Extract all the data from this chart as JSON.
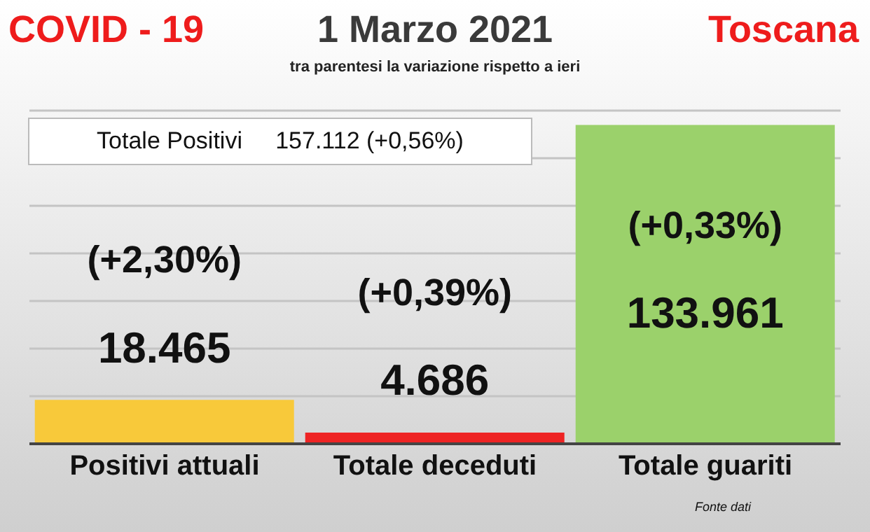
{
  "chart_data": {
    "type": "bar",
    "title": "COVID - 19",
    "subtitle": "1 Marzo 2021",
    "legend_title": null,
    "categories": [
      "Positivi attuali",
      "Totale deceduti",
      "Totale guariti"
    ],
    "values": [
      18465,
      4686,
      133961
    ],
    "colors": [
      "#f8c93a",
      "#ee2424",
      "#9bd16b"
    ],
    "value_labels": [
      "18.465",
      "4.686",
      "133.961"
    ],
    "ylim": [
      0,
      140000
    ],
    "yticks": [
      {
        "value": 0,
        "label": null
      },
      {
        "value": 20000,
        "label": null
      },
      {
        "value": 40000,
        "label": null
      },
      {
        "value": 60000,
        "label": null
      },
      {
        "value": 80000,
        "label": null
      },
      {
        "value": 100000,
        "label": null
      },
      {
        "value": 120000,
        "label": null
      },
      {
        "value": 140000,
        "label": null
      }
    ],
    "grid": "y",
    "legend": false,
    "tick_labels": "x",
    "annotations": [
      "Toscana",
      "tra parentesi la variazione rispetto a ieri",
      "Totale Positivi     157.112 (+0,56%)",
      "(+2,30%)",
      "(+0,39%)",
      "(+0,33%)",
      "Fonte dati"
    ]
  }
}
